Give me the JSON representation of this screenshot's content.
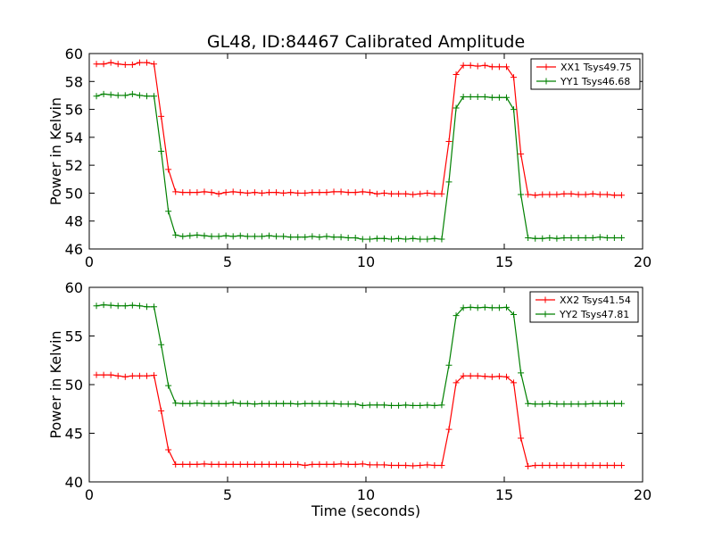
{
  "chart_data": [
    {
      "type": "line",
      "title": "GL48, ID:84467 Calibrated Amplitude",
      "xlabel": "",
      "ylabel": "Power in Kelvin",
      "xlim": [
        0,
        20
      ],
      "ylim": [
        46,
        60
      ],
      "xticks": [
        "0",
        "5",
        "10",
        "15",
        "20"
      ],
      "yticks": [
        "46",
        "48",
        "50",
        "52",
        "54",
        "56",
        "58",
        "60"
      ],
      "grid": false,
      "legend_position": "top-right",
      "x": [
        0.26,
        0.52,
        0.78,
        1.04,
        1.3,
        1.56,
        1.82,
        2.08,
        2.34,
        2.6,
        2.86,
        3.12,
        3.38,
        3.64,
        3.9,
        4.16,
        4.42,
        4.68,
        4.94,
        5.2,
        5.46,
        5.72,
        5.98,
        6.24,
        6.5,
        6.76,
        7.02,
        7.28,
        7.54,
        7.8,
        8.06,
        8.32,
        8.58,
        8.84,
        9.1,
        9.36,
        9.62,
        9.88,
        10.14,
        10.4,
        10.66,
        10.92,
        11.18,
        11.44,
        11.7,
        11.96,
        12.22,
        12.48,
        12.74,
        13.0,
        13.26,
        13.52,
        13.78,
        14.04,
        14.3,
        14.56,
        14.82,
        15.08,
        15.34,
        15.6,
        15.86,
        16.12,
        16.38,
        16.64,
        16.9,
        17.16,
        17.42,
        17.68,
        17.94,
        18.2,
        18.46,
        18.72,
        18.98,
        19.24
      ],
      "series": [
        {
          "name": "XX1 Tsys49.75",
          "color": "#ff0000",
          "values": [
            59.25,
            59.25,
            59.35,
            59.25,
            59.2,
            59.2,
            59.35,
            59.35,
            59.25,
            55.5,
            51.7,
            50.1,
            50.05,
            50.05,
            50.05,
            50.1,
            50.05,
            49.95,
            50.05,
            50.1,
            50.05,
            50.0,
            50.05,
            50.0,
            50.05,
            50.05,
            50.0,
            50.05,
            50.0,
            50.0,
            50.05,
            50.05,
            50.05,
            50.1,
            50.1,
            50.05,
            50.05,
            50.1,
            50.05,
            49.95,
            50.0,
            49.95,
            49.95,
            49.95,
            49.9,
            49.95,
            50.0,
            49.95,
            49.95,
            53.7,
            58.5,
            59.15,
            59.15,
            59.1,
            59.15,
            59.05,
            59.05,
            59.05,
            58.3,
            52.8,
            49.9,
            49.85,
            49.9,
            49.9,
            49.9,
            49.95,
            49.95,
            49.9,
            49.9,
            49.95,
            49.9,
            49.9,
            49.85,
            49.85
          ]
        },
        {
          "name": "YY1 Tsys46.68",
          "color": "#008000",
          "values": [
            56.95,
            57.1,
            57.05,
            57.0,
            57.0,
            57.1,
            57.0,
            56.95,
            56.95,
            53.0,
            48.7,
            47.0,
            46.9,
            46.95,
            47.0,
            46.95,
            46.9,
            46.9,
            46.95,
            46.9,
            46.95,
            46.9,
            46.9,
            46.9,
            46.95,
            46.9,
            46.9,
            46.85,
            46.85,
            46.85,
            46.9,
            46.85,
            46.9,
            46.85,
            46.85,
            46.8,
            46.8,
            46.7,
            46.7,
            46.75,
            46.75,
            46.7,
            46.75,
            46.7,
            46.75,
            46.7,
            46.7,
            46.75,
            46.7,
            50.8,
            56.1,
            56.9,
            56.9,
            56.9,
            56.9,
            56.85,
            56.85,
            56.85,
            56.0,
            49.9,
            46.8,
            46.75,
            46.75,
            46.8,
            46.75,
            46.8,
            46.8,
            46.8,
            46.8,
            46.8,
            46.85,
            46.8,
            46.8,
            46.8
          ]
        }
      ]
    },
    {
      "type": "line",
      "title": "",
      "xlabel": "Time (seconds)",
      "ylabel": "Power in Kelvin",
      "xlim": [
        0,
        20
      ],
      "ylim": [
        40,
        60
      ],
      "xticks": [
        "0",
        "5",
        "10",
        "15",
        "20"
      ],
      "yticks": [
        "40",
        "45",
        "50",
        "55",
        "60"
      ],
      "grid": false,
      "legend_position": "top-right",
      "x": [
        0.26,
        0.52,
        0.78,
        1.04,
        1.3,
        1.56,
        1.82,
        2.08,
        2.34,
        2.6,
        2.86,
        3.12,
        3.38,
        3.64,
        3.9,
        4.16,
        4.42,
        4.68,
        4.94,
        5.2,
        5.46,
        5.72,
        5.98,
        6.24,
        6.5,
        6.76,
        7.02,
        7.28,
        7.54,
        7.8,
        8.06,
        8.32,
        8.58,
        8.84,
        9.1,
        9.36,
        9.62,
        9.88,
        10.14,
        10.4,
        10.66,
        10.92,
        11.18,
        11.44,
        11.7,
        11.96,
        12.22,
        12.48,
        12.74,
        13.0,
        13.26,
        13.52,
        13.78,
        14.04,
        14.3,
        14.56,
        14.82,
        15.08,
        15.34,
        15.6,
        15.86,
        16.12,
        16.38,
        16.64,
        16.9,
        17.16,
        17.42,
        17.68,
        17.94,
        18.2,
        18.46,
        18.72,
        18.98,
        19.24
      ],
      "series": [
        {
          "name": "XX2 Tsys41.54",
          "color": "#ff0000",
          "values": [
            51.0,
            51.0,
            51.0,
            50.9,
            50.8,
            50.9,
            50.9,
            50.9,
            50.95,
            47.3,
            43.3,
            41.8,
            41.8,
            41.8,
            41.8,
            41.85,
            41.8,
            41.8,
            41.8,
            41.8,
            41.8,
            41.8,
            41.8,
            41.8,
            41.8,
            41.8,
            41.8,
            41.8,
            41.8,
            41.7,
            41.8,
            41.8,
            41.8,
            41.8,
            41.85,
            41.8,
            41.8,
            41.85,
            41.75,
            41.75,
            41.75,
            41.7,
            41.7,
            41.7,
            41.65,
            41.7,
            41.75,
            41.7,
            41.7,
            45.4,
            50.2,
            50.9,
            50.9,
            50.9,
            50.85,
            50.8,
            50.85,
            50.8,
            50.2,
            44.5,
            41.6,
            41.7,
            41.7,
            41.7,
            41.7,
            41.7,
            41.7,
            41.7,
            41.7,
            41.7,
            41.7,
            41.7,
            41.7,
            41.7
          ]
        },
        {
          "name": "YY2 Tsys47.81",
          "color": "#008000",
          "values": [
            58.1,
            58.2,
            58.15,
            58.1,
            58.1,
            58.15,
            58.1,
            58.0,
            58.0,
            54.1,
            49.9,
            48.1,
            48.05,
            48.05,
            48.1,
            48.05,
            48.05,
            48.05,
            48.05,
            48.15,
            48.05,
            48.05,
            48.0,
            48.05,
            48.05,
            48.05,
            48.05,
            48.05,
            48.0,
            48.05,
            48.05,
            48.05,
            48.05,
            48.05,
            48.0,
            48.0,
            48.0,
            47.85,
            47.9,
            47.9,
            47.9,
            47.85,
            47.85,
            47.9,
            47.85,
            47.85,
            47.9,
            47.85,
            47.9,
            52.0,
            57.1,
            57.9,
            57.95,
            57.9,
            57.95,
            57.9,
            57.9,
            57.95,
            57.2,
            51.2,
            48.05,
            48.0,
            48.0,
            48.05,
            48.0,
            48.0,
            48.0,
            48.0,
            48.0,
            48.05,
            48.05,
            48.05,
            48.05,
            48.05
          ]
        }
      ]
    }
  ]
}
